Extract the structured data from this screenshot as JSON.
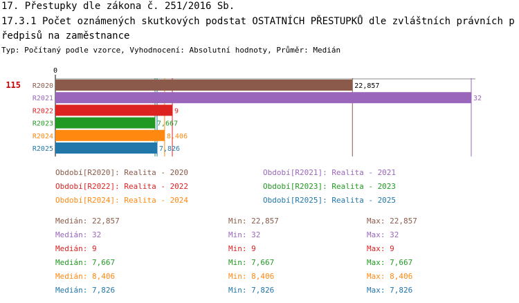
{
  "header": {
    "title": "17. Přestupky dle zákona č. 251/2016 Sb.",
    "subtitle": "17.3.1 Počet oznámených skutkových podstat OSTATNÍCH PŘESTUPKŮ dle zvláštních právních předpisů na zaměstnance",
    "meta": "Typ: Počítaný podle vzorce, Vyhodnocení: Absolutní hodnoty, Průměr: Medián"
  },
  "chart_data": {
    "type": "bar",
    "orientation": "horizontal",
    "row_label": "115",
    "axis_zero_label": "0",
    "xlim": [
      0,
      32
    ],
    "categories": [
      "R2020",
      "R2021",
      "R2022",
      "R2023",
      "R2024",
      "R2025"
    ],
    "values": [
      22.857,
      32,
      9,
      7.667,
      8.406,
      7.826
    ],
    "value_labels": [
      "22,857",
      "32",
      "9",
      "7,667",
      "8,406",
      "7,826"
    ],
    "colors": [
      "#8b5a4a",
      "#9966bb",
      "#dd2222",
      "#229922",
      "#ff8811",
      "#2277aa"
    ]
  },
  "legend": [
    {
      "label": "Období[R2020]: Realita - 2020",
      "color": "#8b5a4a"
    },
    {
      "label": "Období[R2021]: Realita - 2021",
      "color": "#9966bb"
    },
    {
      "label": "Období[R2022]: Realita - 2022",
      "color": "#dd2222"
    },
    {
      "label": "Období[R2023]: Realita - 2023",
      "color": "#229922"
    },
    {
      "label": "Období[R2024]: Realita - 2024",
      "color": "#ff8811"
    },
    {
      "label": "Období[R2025]: Realita - 2025",
      "color": "#2277aa"
    }
  ],
  "stats": [
    {
      "median": "Medián: 22,857",
      "min": "Min: 22,857",
      "max": "Max: 22,857",
      "color": "#8b5a4a"
    },
    {
      "median": "Medián: 32",
      "min": "Min: 32",
      "max": "Max: 32",
      "color": "#9966bb"
    },
    {
      "median": "Medián: 9",
      "min": "Min: 9",
      "max": "Max: 9",
      "color": "#dd2222"
    },
    {
      "median": "Medián: 7,667",
      "min": "Min: 7,667",
      "max": "Max: 7,667",
      "color": "#229922"
    },
    {
      "median": "Medián: 8,406",
      "min": "Min: 8,406",
      "max": "Max: 8,406",
      "color": "#ff8811"
    },
    {
      "median": "Medián: 7,826",
      "min": "Min: 7,826",
      "max": "Max: 7,826",
      "color": "#2277aa"
    }
  ]
}
